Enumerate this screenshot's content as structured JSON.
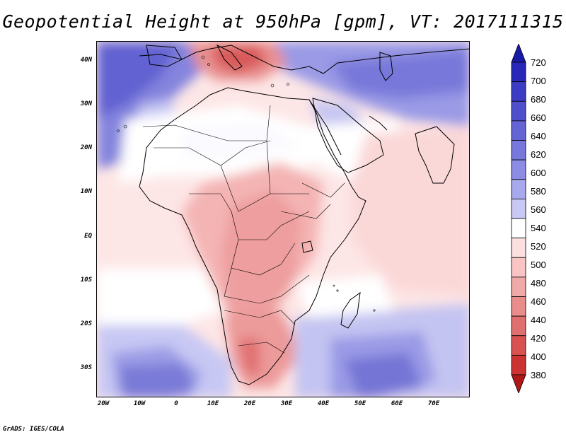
{
  "title": "Geopotential Height at 950hPa [gpm], VT: 2017111315",
  "credit": "GrADS: IGES/COLA",
  "map": {
    "projection": "latlon",
    "lon_range": [
      -22,
      80
    ],
    "lat_range": [
      -36,
      45
    ],
    "lat_ticks": [
      "40N",
      "30N",
      "20N",
      "10N",
      "EQ",
      "10S",
      "20S",
      "30S"
    ],
    "lon_ticks": [
      "20W",
      "10W",
      "0",
      "10E",
      "20E",
      "30E",
      "40E",
      "50E",
      "60E",
      "70E"
    ]
  },
  "colorbar": {
    "labels": [
      "720",
      "700",
      "680",
      "660",
      "640",
      "620",
      "600",
      "580",
      "560",
      "540",
      "520",
      "500",
      "480",
      "460",
      "440",
      "420",
      "400",
      "380"
    ],
    "colors": [
      "#1a1aa8",
      "#2828b8",
      "#3c3cc4",
      "#5050cc",
      "#6464d4",
      "#7878dc",
      "#8c8ce4",
      "#a8a8ec",
      "#c8c8f4",
      "#ffffff",
      "#fce0e0",
      "#f8c4c4",
      "#f0a8a8",
      "#e88c8c",
      "#e07070",
      "#d85252",
      "#cc3434",
      "#b01818"
    ]
  }
}
